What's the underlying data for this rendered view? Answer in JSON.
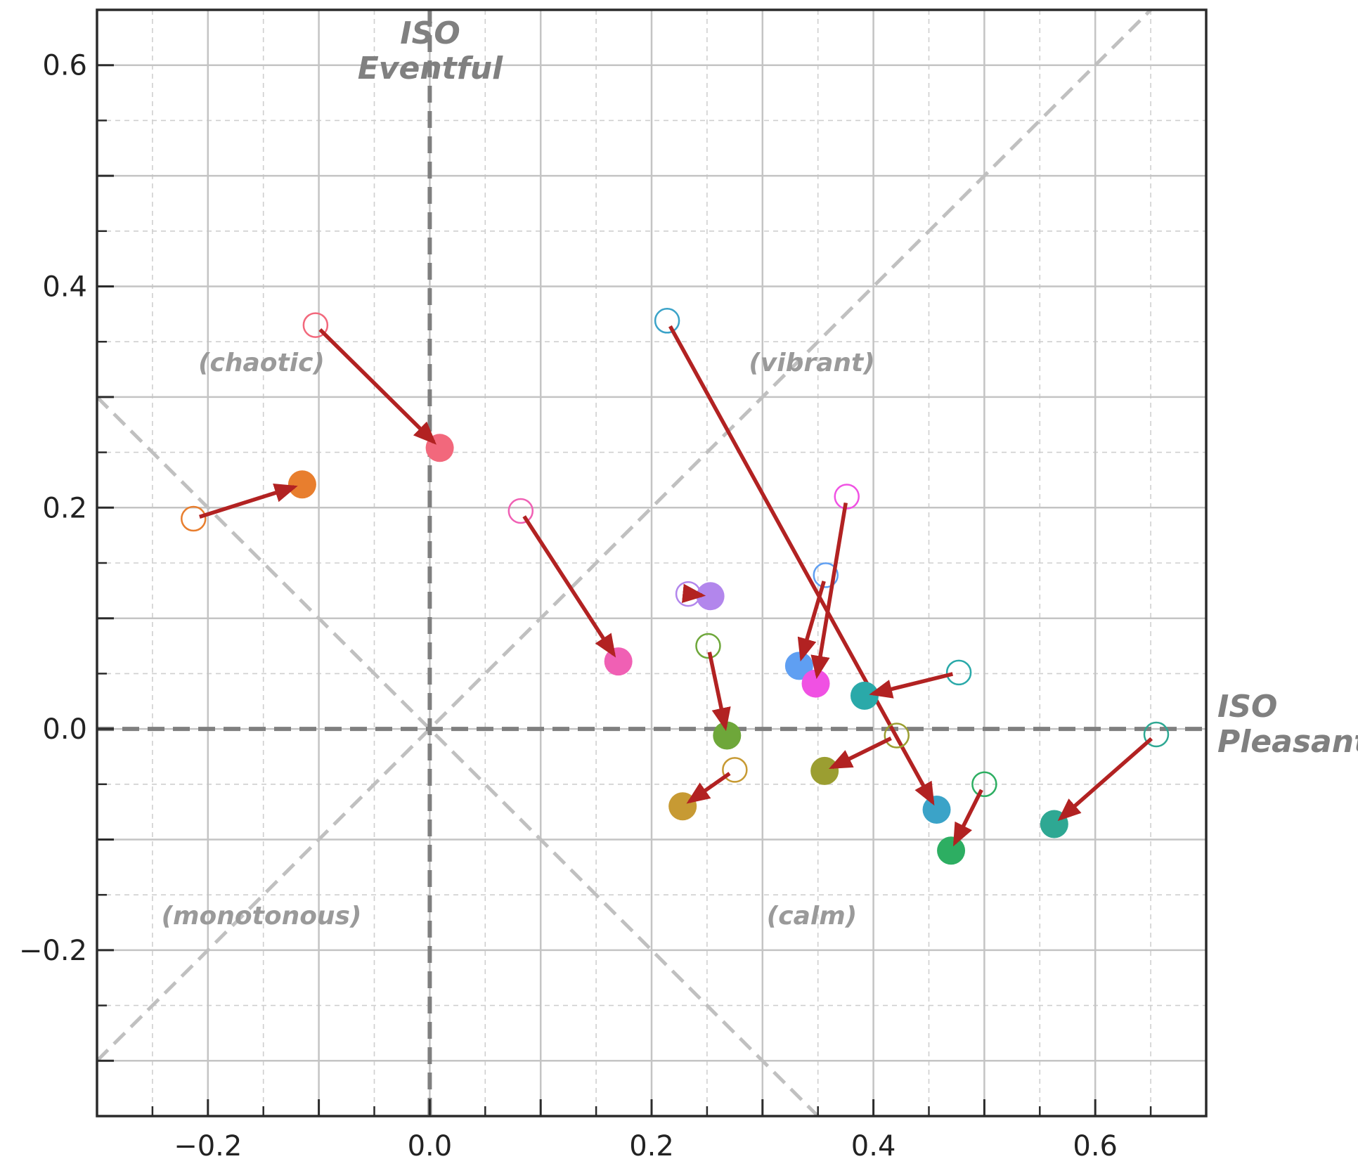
{
  "chart_data": {
    "type": "scatter",
    "xlim": [
      -0.3,
      0.7
    ],
    "ylim": [
      -0.35,
      0.65
    ],
    "x_ticks": [
      -0.2,
      0.0,
      0.2,
      0.4,
      0.6
    ],
    "y_ticks": [
      -0.2,
      0.0,
      0.2,
      0.4,
      0.6
    ],
    "x_tick_labels": [
      "−0.2",
      "0.0",
      "0.2",
      "0.4",
      "0.6"
    ],
    "y_tick_labels": [
      "−0.2",
      "0.0",
      "0.2",
      "0.4",
      "0.6"
    ],
    "grid": "major solid, minor dashed",
    "axis_titles": {
      "x": [
        "ISO",
        "Pleasant"
      ],
      "y": [
        "ISO",
        "Eventful"
      ]
    },
    "quadrant_labels": {
      "chaotic": "(chaotic)",
      "vibrant": "(vibrant)",
      "monotonous": "(monotonous)",
      "calm": "(calm)"
    },
    "arrow_color": "#b22222",
    "points": [
      {
        "from": [
          -0.213,
          0.19
        ],
        "to": [
          -0.115,
          0.221
        ],
        "color": "#e87e2e"
      },
      {
        "from": [
          -0.103,
          0.365
        ],
        "to": [
          0.009,
          0.254
        ],
        "color": "#f2687c"
      },
      {
        "from": [
          0.082,
          0.197
        ],
        "to": [
          0.17,
          0.061
        ],
        "color": "#f060b4"
      },
      {
        "from": [
          0.214,
          0.369
        ],
        "to": [
          0.457,
          -0.073
        ],
        "color": "#3ba3c8"
      },
      {
        "from": [
          0.233,
          0.122
        ],
        "to": [
          0.253,
          0.12
        ],
        "color": "#b286ec"
      },
      {
        "from": [
          0.251,
          0.075
        ],
        "to": [
          0.268,
          -0.006
        ],
        "color": "#6ea73a"
      },
      {
        "from": [
          0.275,
          -0.037
        ],
        "to": [
          0.228,
          -0.07
        ],
        "color": "#c79a33"
      },
      {
        "from": [
          0.357,
          0.139
        ],
        "to": [
          0.333,
          0.057
        ],
        "color": "#5f9ff2"
      },
      {
        "from": [
          0.376,
          0.21
        ],
        "to": [
          0.348,
          0.041
        ],
        "color": "#f051e3"
      },
      {
        "from": [
          0.477,
          0.051
        ],
        "to": [
          0.392,
          0.03
        ],
        "color": "#2aa9a9"
      },
      {
        "from": [
          0.421,
          -0.006
        ],
        "to": [
          0.356,
          -0.038
        ],
        "color": "#9b9e31"
      },
      {
        "from": [
          0.5,
          -0.05
        ],
        "to": [
          0.47,
          -0.11
        ],
        "color": "#2dae62"
      },
      {
        "from": [
          0.655,
          -0.005
        ],
        "to": [
          0.563,
          -0.086
        ],
        "color": "#2ea893"
      }
    ]
  }
}
